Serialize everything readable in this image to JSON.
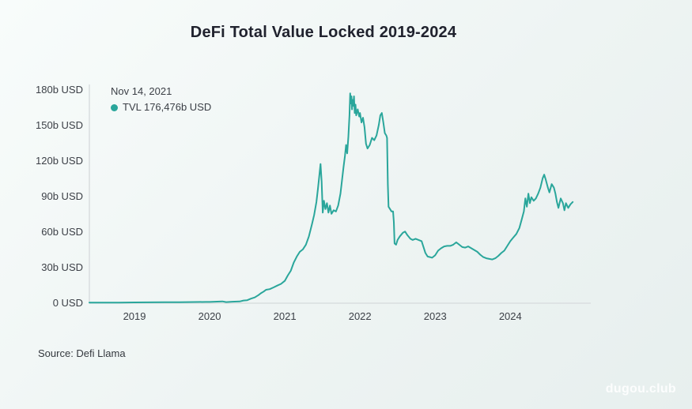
{
  "title": "DeFi Total Value Locked 2019-2024",
  "tooltip": {
    "date": "Nov 14, 2021",
    "value_label": "TVL 176,476b USD"
  },
  "source": "Source: Defi Llama",
  "watermark": "dugou.club",
  "colors": {
    "line": "#2aa69b",
    "marker": "#2aa69b",
    "axis": "#d9dedf",
    "title_text": "#20222e",
    "label_text": "#3b3f46",
    "background_start": "#f8fcfb",
    "background_end": "#e7efee",
    "watermark_text": "#ffffff"
  },
  "chart_data": {
    "type": "line",
    "title": "DeFi Total Value Locked 2019-2024",
    "xlabel": "",
    "ylabel": "",
    "x_unit": "decimal_year",
    "y_unit": "billion USD",
    "xlim": [
      2018.4,
      2025.07
    ],
    "ylim": [
      0,
      180
    ],
    "grid": false,
    "legend_position": "top-left",
    "y_ticks": [
      {
        "value": 0,
        "label": "0 USD"
      },
      {
        "value": 30,
        "label": "30b USD"
      },
      {
        "value": 60,
        "label": "60b USD"
      },
      {
        "value": 90,
        "label": "90b USD"
      },
      {
        "value": 120,
        "label": "120b USD"
      },
      {
        "value": 150,
        "label": "150b USD"
      },
      {
        "value": 180,
        "label": "180b USD"
      }
    ],
    "x_ticks": [
      {
        "value": 2019,
        "label": "2019"
      },
      {
        "value": 2020,
        "label": "2020"
      },
      {
        "value": 2021,
        "label": "2021"
      },
      {
        "value": 2022,
        "label": "2022"
      },
      {
        "value": 2023,
        "label": "2023"
      },
      {
        "value": 2024,
        "label": "2024"
      }
    ],
    "highlight_point": {
      "date": "Nov 14, 2021",
      "x": 2021.87,
      "value": 176.476
    },
    "series": [
      {
        "name": "TVL",
        "color": "#2aa69b",
        "points": [
          [
            2018.4,
            0.1
          ],
          [
            2018.6,
            0.15
          ],
          [
            2018.8,
            0.2
          ],
          [
            2019.0,
            0.3
          ],
          [
            2019.2,
            0.4
          ],
          [
            2019.4,
            0.5
          ],
          [
            2019.6,
            0.55
          ],
          [
            2019.8,
            0.65
          ],
          [
            2019.95,
            0.7
          ],
          [
            2020.0,
            0.75
          ],
          [
            2020.1,
            1.0
          ],
          [
            2020.17,
            1.2
          ],
          [
            2020.22,
            0.6
          ],
          [
            2020.3,
            0.9
          ],
          [
            2020.4,
            1.1
          ],
          [
            2020.45,
            1.9
          ],
          [
            2020.5,
            2.2
          ],
          [
            2020.55,
            3.5
          ],
          [
            2020.6,
            4.5
          ],
          [
            2020.65,
            6.5
          ],
          [
            2020.68,
            8
          ],
          [
            2020.72,
            9.5
          ],
          [
            2020.75,
            11
          ],
          [
            2020.8,
            11.5
          ],
          [
            2020.85,
            13
          ],
          [
            2020.9,
            14.5
          ],
          [
            2020.95,
            16
          ],
          [
            2021.0,
            18.5
          ],
          [
            2021.04,
            23
          ],
          [
            2021.08,
            27
          ],
          [
            2021.12,
            34
          ],
          [
            2021.16,
            39
          ],
          [
            2021.2,
            43
          ],
          [
            2021.24,
            45
          ],
          [
            2021.28,
            49
          ],
          [
            2021.32,
            56
          ],
          [
            2021.36,
            66
          ],
          [
            2021.39,
            74
          ],
          [
            2021.42,
            85
          ],
          [
            2021.44,
            96
          ],
          [
            2021.46,
            108
          ],
          [
            2021.475,
            117
          ],
          [
            2021.49,
            102
          ],
          [
            2021.505,
            76
          ],
          [
            2021.52,
            86
          ],
          [
            2021.54,
            79
          ],
          [
            2021.56,
            84
          ],
          [
            2021.58,
            76
          ],
          [
            2021.6,
            82
          ],
          [
            2021.62,
            75
          ],
          [
            2021.65,
            78
          ],
          [
            2021.68,
            77
          ],
          [
            2021.71,
            82
          ],
          [
            2021.74,
            92
          ],
          [
            2021.76,
            103
          ],
          [
            2021.78,
            114
          ],
          [
            2021.8,
            124
          ],
          [
            2021.815,
            133
          ],
          [
            2021.83,
            126
          ],
          [
            2021.845,
            140
          ],
          [
            2021.86,
            158
          ],
          [
            2021.87,
            176.5
          ],
          [
            2021.878,
            168
          ],
          [
            2021.886,
            174
          ],
          [
            2021.894,
            163
          ],
          [
            2021.9,
            171
          ],
          [
            2021.91,
            166
          ],
          [
            2021.92,
            174
          ],
          [
            2021.93,
            160
          ],
          [
            2021.94,
            167
          ],
          [
            2021.95,
            158
          ],
          [
            2021.97,
            163
          ],
          [
            2021.99,
            157
          ],
          [
            2022.0,
            160
          ],
          [
            2022.02,
            152
          ],
          [
            2022.04,
            156
          ],
          [
            2022.06,
            148
          ],
          [
            2022.08,
            134
          ],
          [
            2022.1,
            130
          ],
          [
            2022.13,
            133
          ],
          [
            2022.16,
            139
          ],
          [
            2022.19,
            137
          ],
          [
            2022.22,
            141
          ],
          [
            2022.25,
            150
          ],
          [
            2022.27,
            158
          ],
          [
            2022.29,
            160
          ],
          [
            2022.31,
            152
          ],
          [
            2022.33,
            143
          ],
          [
            2022.35,
            141
          ],
          [
            2022.36,
            139
          ],
          [
            2022.37,
            100
          ],
          [
            2022.38,
            81
          ],
          [
            2022.4,
            79
          ],
          [
            2022.42,
            77
          ],
          [
            2022.44,
            77
          ],
          [
            2022.45,
            68
          ],
          [
            2022.46,
            50
          ],
          [
            2022.48,
            49
          ],
          [
            2022.5,
            53
          ],
          [
            2022.53,
            56
          ],
          [
            2022.57,
            59
          ],
          [
            2022.6,
            60
          ],
          [
            2022.63,
            57
          ],
          [
            2022.67,
            54
          ],
          [
            2022.7,
            53
          ],
          [
            2022.74,
            54
          ],
          [
            2022.78,
            53
          ],
          [
            2022.82,
            52
          ],
          [
            2022.85,
            46
          ],
          [
            2022.87,
            42
          ],
          [
            2022.9,
            39
          ],
          [
            2022.93,
            38.5
          ],
          [
            2022.96,
            38
          ],
          [
            2023.0,
            40
          ],
          [
            2023.04,
            44
          ],
          [
            2023.08,
            46
          ],
          [
            2023.12,
            47.5
          ],
          [
            2023.16,
            48
          ],
          [
            2023.2,
            48
          ],
          [
            2023.24,
            49
          ],
          [
            2023.28,
            51
          ],
          [
            2023.32,
            49
          ],
          [
            2023.36,
            47
          ],
          [
            2023.4,
            46.5
          ],
          [
            2023.44,
            47.5
          ],
          [
            2023.48,
            46
          ],
          [
            2023.52,
            44.5
          ],
          [
            2023.56,
            43
          ],
          [
            2023.6,
            40.5
          ],
          [
            2023.64,
            38.5
          ],
          [
            2023.68,
            37.5
          ],
          [
            2023.72,
            37
          ],
          [
            2023.76,
            36.5
          ],
          [
            2023.8,
            37.5
          ],
          [
            2023.84,
            39.5
          ],
          [
            2023.88,
            42
          ],
          [
            2023.92,
            44
          ],
          [
            2023.96,
            48
          ],
          [
            2024.0,
            52
          ],
          [
            2024.04,
            55
          ],
          [
            2024.08,
            58
          ],
          [
            2024.12,
            63
          ],
          [
            2024.15,
            70
          ],
          [
            2024.18,
            77
          ],
          [
            2024.2,
            88
          ],
          [
            2024.22,
            81
          ],
          [
            2024.24,
            92
          ],
          [
            2024.26,
            84
          ],
          [
            2024.28,
            89
          ],
          [
            2024.31,
            86
          ],
          [
            2024.34,
            88
          ],
          [
            2024.37,
            92
          ],
          [
            2024.4,
            97
          ],
          [
            2024.43,
            105
          ],
          [
            2024.45,
            108
          ],
          [
            2024.47,
            104
          ],
          [
            2024.5,
            97
          ],
          [
            2024.52,
            93
          ],
          [
            2024.55,
            100
          ],
          [
            2024.58,
            97
          ],
          [
            2024.6,
            92
          ],
          [
            2024.62,
            85
          ],
          [
            2024.64,
            80
          ],
          [
            2024.67,
            88
          ],
          [
            2024.7,
            84
          ],
          [
            2024.72,
            78
          ],
          [
            2024.74,
            84
          ],
          [
            2024.77,
            80
          ],
          [
            2024.8,
            83
          ],
          [
            2024.83,
            85
          ]
        ]
      }
    ]
  }
}
